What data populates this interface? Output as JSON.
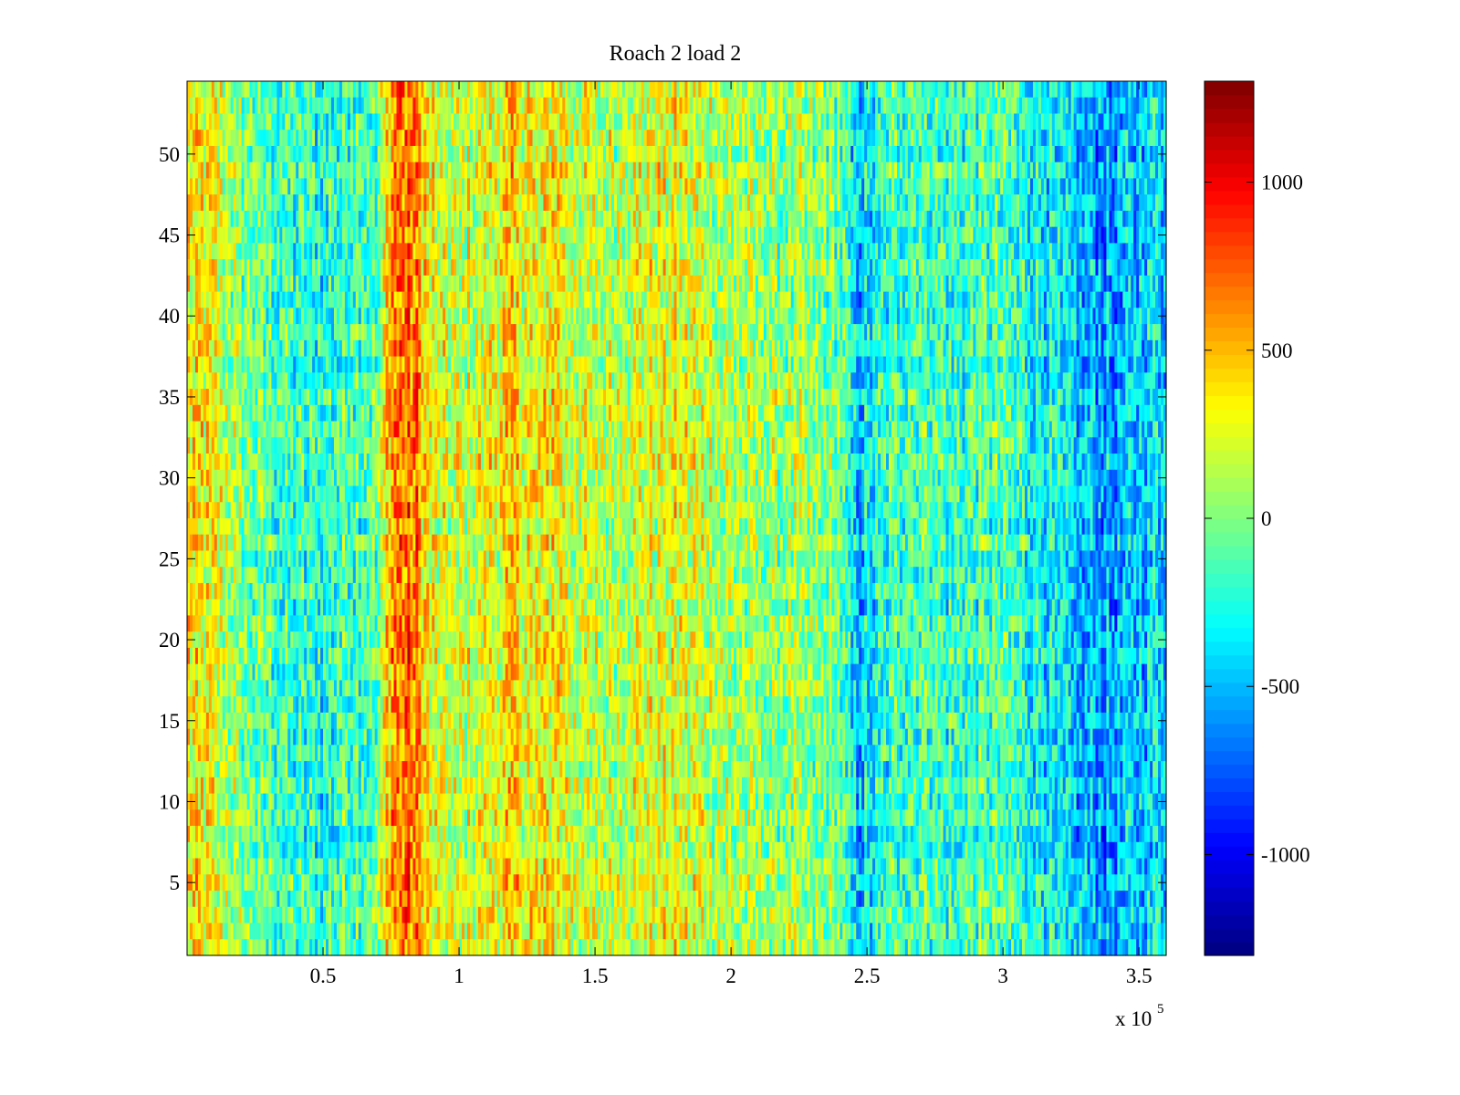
{
  "chart_data": {
    "type": "heatmap",
    "title": "Roach 2 load 2",
    "xlabel": "",
    "ylabel": "",
    "x_exponent_label": "x 10",
    "x_exponent_power": "5",
    "xlim": [
      0,
      3.6
    ],
    "ylim": [
      0.5,
      54.5
    ],
    "x_ticks": [
      0.5,
      1,
      1.5,
      2,
      2.5,
      3,
      3.5
    ],
    "x_tick_labels": [
      "0.5",
      "1",
      "1.5",
      "2",
      "2.5",
      "3",
      "3.5"
    ],
    "y_ticks": [
      5,
      10,
      15,
      20,
      25,
      30,
      35,
      40,
      45,
      50
    ],
    "y_tick_labels": [
      "5",
      "10",
      "15",
      "20",
      "25",
      "30",
      "35",
      "40",
      "45",
      "50"
    ],
    "rows": 54,
    "colormap": "jet",
    "clim": [
      -1300,
      1300
    ],
    "colorbar_ticks": [
      -1000,
      -500,
      0,
      500,
      1000
    ],
    "colorbar_tick_labels": [
      "-1000",
      "-500",
      "0",
      "500",
      "1000"
    ],
    "colorbar_position": "right",
    "column_profile_x": [
      0,
      0.1,
      0.2,
      0.3,
      0.4,
      0.5,
      0.6,
      0.7,
      0.75,
      0.8,
      0.85,
      0.9,
      0.95,
      1.0,
      1.1,
      1.2,
      1.3,
      1.35,
      1.4,
      1.5,
      1.6,
      1.7,
      1.8,
      1.9,
      2.0,
      2.1,
      2.2,
      2.3,
      2.4,
      2.45,
      2.5,
      2.6,
      2.7,
      2.8,
      2.9,
      3.0,
      3.1,
      3.2,
      3.3,
      3.4,
      3.5,
      3.6
    ],
    "column_profile_mean": [
      350,
      250,
      0,
      -120,
      -200,
      -250,
      -120,
      -100,
      600,
      700,
      600,
      250,
      200,
      150,
      250,
      400,
      250,
      400,
      250,
      150,
      200,
      250,
      250,
      200,
      100,
      50,
      50,
      0,
      -50,
      -450,
      -400,
      -150,
      -100,
      -200,
      -150,
      -150,
      -250,
      -400,
      -500,
      -550,
      -450,
      -350
    ],
    "background_color": "#ffffff"
  }
}
